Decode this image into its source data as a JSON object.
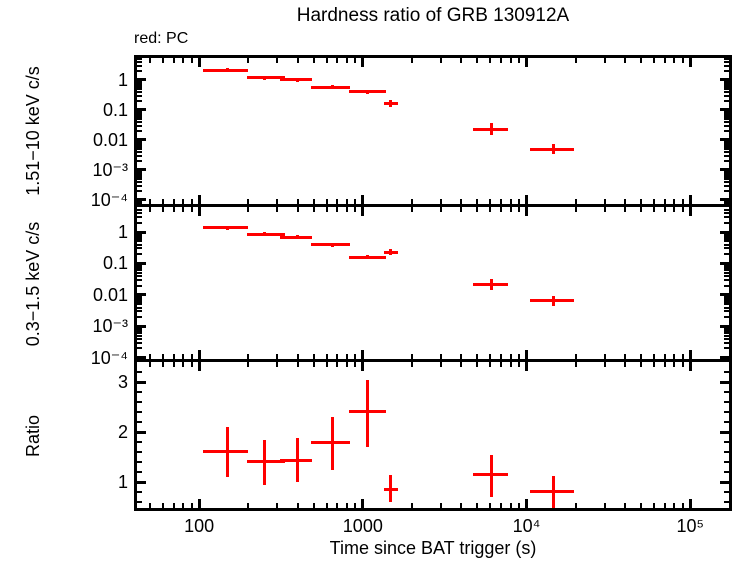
{
  "chart": {
    "title": "Hardness ratio of GRB 130912A",
    "mode_label": "red: PC",
    "xlabel": "Time since BAT trigger (s)",
    "point_color": "#ff0000",
    "axis_color": "#000000",
    "background": "#ffffff"
  },
  "chart_data": {
    "type": "scatter",
    "subtype": "error-bar-cross",
    "title": "Hardness ratio of GRB 130912A",
    "annotation": "red: PC",
    "series_color": "#ff0000",
    "grid": false,
    "legend": null,
    "xlabel": "Time since BAT trigger (s)",
    "x_scale": "log",
    "xlim": [
      40,
      180000
    ],
    "x_ticks": [
      {
        "v": 100,
        "label": "100"
      },
      {
        "v": 1000,
        "label": "1000"
      },
      {
        "v": 10000,
        "label": "10⁴"
      },
      {
        "v": 100000,
        "label": "10⁵"
      }
    ],
    "panels": [
      {
        "id": "hard",
        "ylabel": "1.51−10 keV c/s",
        "y_scale": "log",
        "ylim": [
          6.3e-05,
          6.8
        ],
        "y_ticks": [
          {
            "v": 1,
            "label": "1"
          },
          {
            "v": 0.1,
            "label": "0.1"
          },
          {
            "v": 0.01,
            "label": "0.01"
          },
          {
            "v": 0.001,
            "label": "10⁻³"
          },
          {
            "v": 0.0001,
            "label": "10⁻⁴"
          }
        ],
        "points": [
          {
            "t": 150,
            "t_lo": 105,
            "t_hi": 200,
            "v": 2.15,
            "v_lo": 1.85,
            "v_hi": 2.5
          },
          {
            "t": 250,
            "t_lo": 195,
            "t_hi": 335,
            "v": 1.17,
            "v_lo": 1.03,
            "v_hi": 1.33
          },
          {
            "t": 400,
            "t_lo": 310,
            "t_hi": 490,
            "v": 1.0,
            "v_lo": 0.88,
            "v_hi": 1.14
          },
          {
            "t": 650,
            "t_lo": 480,
            "t_hi": 840,
            "v": 0.58,
            "v_lo": 0.51,
            "v_hi": 0.67
          },
          {
            "t": 1070,
            "t_lo": 820,
            "t_hi": 1380,
            "v": 0.4,
            "v_lo": 0.35,
            "v_hi": 0.46
          },
          {
            "t": 1480,
            "t_lo": 1340,
            "t_hi": 1640,
            "v": 0.17,
            "v_lo": 0.13,
            "v_hi": 0.22
          },
          {
            "t": 6100,
            "t_lo": 4700,
            "t_hi": 7700,
            "v": 0.023,
            "v_lo": 0.015,
            "v_hi": 0.036
          },
          {
            "t": 14700,
            "t_lo": 10500,
            "t_hi": 19500,
            "v": 0.005,
            "v_lo": 0.0034,
            "v_hi": 0.0073
          }
        ]
      },
      {
        "id": "soft",
        "ylabel": "0.3−1.5 keV c/s",
        "y_scale": "log",
        "ylim": [
          8e-05,
          6.7
        ],
        "y_ticks": [
          {
            "v": 1,
            "label": "1"
          },
          {
            "v": 0.1,
            "label": "0.1"
          },
          {
            "v": 0.01,
            "label": "0.01"
          },
          {
            "v": 0.001,
            "label": "10⁻³"
          },
          {
            "v": 0.0001,
            "label": "10⁻⁴"
          }
        ],
        "points": [
          {
            "t": 150,
            "t_lo": 105,
            "t_hi": 200,
            "v": 1.35,
            "v_lo": 1.2,
            "v_hi": 1.55
          },
          {
            "t": 250,
            "t_lo": 195,
            "t_hi": 335,
            "v": 0.86,
            "v_lo": 0.76,
            "v_hi": 0.98
          },
          {
            "t": 400,
            "t_lo": 310,
            "t_hi": 490,
            "v": 0.69,
            "v_lo": 0.6,
            "v_hi": 0.79
          },
          {
            "t": 650,
            "t_lo": 480,
            "t_hi": 840,
            "v": 0.39,
            "v_lo": 0.34,
            "v_hi": 0.45
          },
          {
            "t": 1070,
            "t_lo": 820,
            "t_hi": 1380,
            "v": 0.16,
            "v_lo": 0.14,
            "v_hi": 0.19
          },
          {
            "t": 1480,
            "t_lo": 1340,
            "t_hi": 1640,
            "v": 0.23,
            "v_lo": 0.18,
            "v_hi": 0.29
          },
          {
            "t": 6100,
            "t_lo": 4700,
            "t_hi": 7700,
            "v": 0.022,
            "v_lo": 0.014,
            "v_hi": 0.033
          },
          {
            "t": 14700,
            "t_lo": 10500,
            "t_hi": 19500,
            "v": 0.0065,
            "v_lo": 0.0045,
            "v_hi": 0.0095
          }
        ]
      },
      {
        "id": "ratio",
        "ylabel": "Ratio",
        "y_scale": "linear",
        "ylim": [
          0.44,
          3.42
        ],
        "minor_step": 0.2,
        "y_ticks": [
          {
            "v": 1,
            "label": "1"
          },
          {
            "v": 2,
            "label": "2"
          },
          {
            "v": 3,
            "label": "3"
          }
        ],
        "points": [
          {
            "t": 150,
            "t_lo": 105,
            "t_hi": 200,
            "v": 1.62,
            "v_lo": 1.1,
            "v_hi": 2.1
          },
          {
            "t": 250,
            "t_lo": 195,
            "t_hi": 335,
            "v": 1.42,
            "v_lo": 0.94,
            "v_hi": 1.84
          },
          {
            "t": 400,
            "t_lo": 310,
            "t_hi": 490,
            "v": 1.44,
            "v_lo": 1.0,
            "v_hi": 1.88
          },
          {
            "t": 650,
            "t_lo": 480,
            "t_hi": 840,
            "v": 1.8,
            "v_lo": 1.24,
            "v_hi": 2.3
          },
          {
            "t": 1070,
            "t_lo": 820,
            "t_hi": 1380,
            "v": 2.42,
            "v_lo": 1.7,
            "v_hi": 3.04
          },
          {
            "t": 1480,
            "t_lo": 1340,
            "t_hi": 1640,
            "v": 0.86,
            "v_lo": 0.6,
            "v_hi": 1.14
          },
          {
            "t": 6100,
            "t_lo": 4700,
            "t_hi": 7700,
            "v": 1.16,
            "v_lo": 0.7,
            "v_hi": 1.54
          },
          {
            "t": 14700,
            "t_lo": 10500,
            "t_hi": 19500,
            "v": 0.82,
            "v_lo": 0.48,
            "v_hi": 1.12
          }
        ]
      }
    ]
  }
}
